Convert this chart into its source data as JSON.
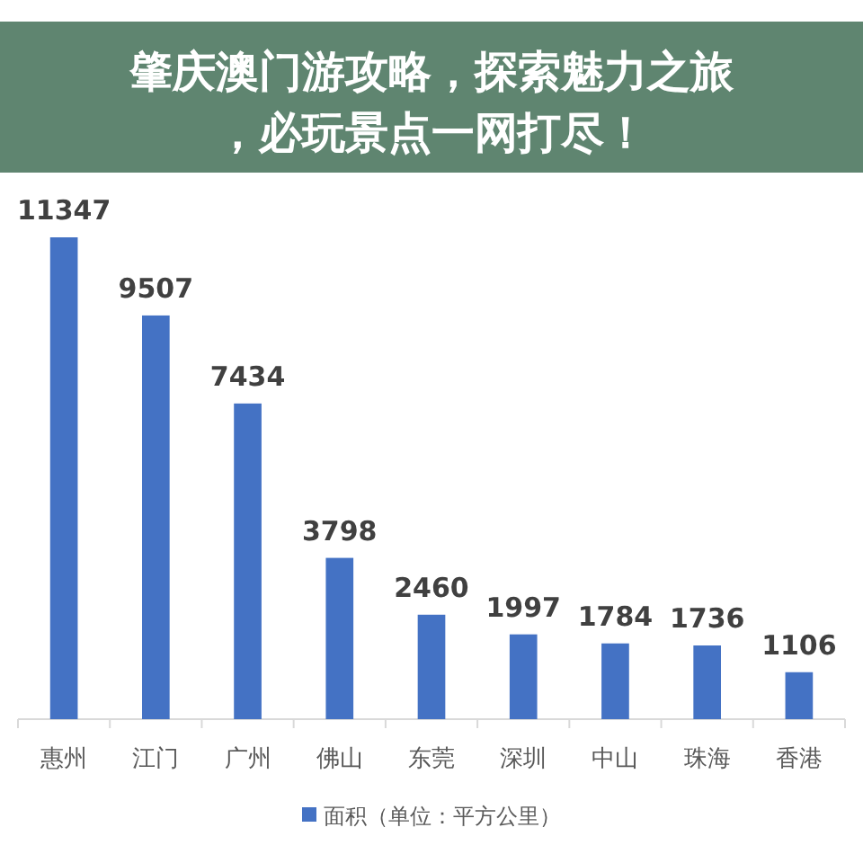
{
  "chart_data": {
    "type": "bar",
    "title": "肇庆澳门游攻略，探索魅力之旅，必玩景点一网打尽！",
    "categories": [
      "惠州",
      "江门",
      "广州",
      "佛山",
      "东莞",
      "深圳",
      "中山",
      "珠海",
      "香港"
    ],
    "series": [
      {
        "name": "面积（单位：平方公里）",
        "color": "#4472c4",
        "values": [
          11347,
          9507,
          7434,
          3798,
          2460,
          1997,
          1784,
          1736,
          1106
        ]
      }
    ],
    "data_labels": true,
    "legend": "bottom"
  }
}
